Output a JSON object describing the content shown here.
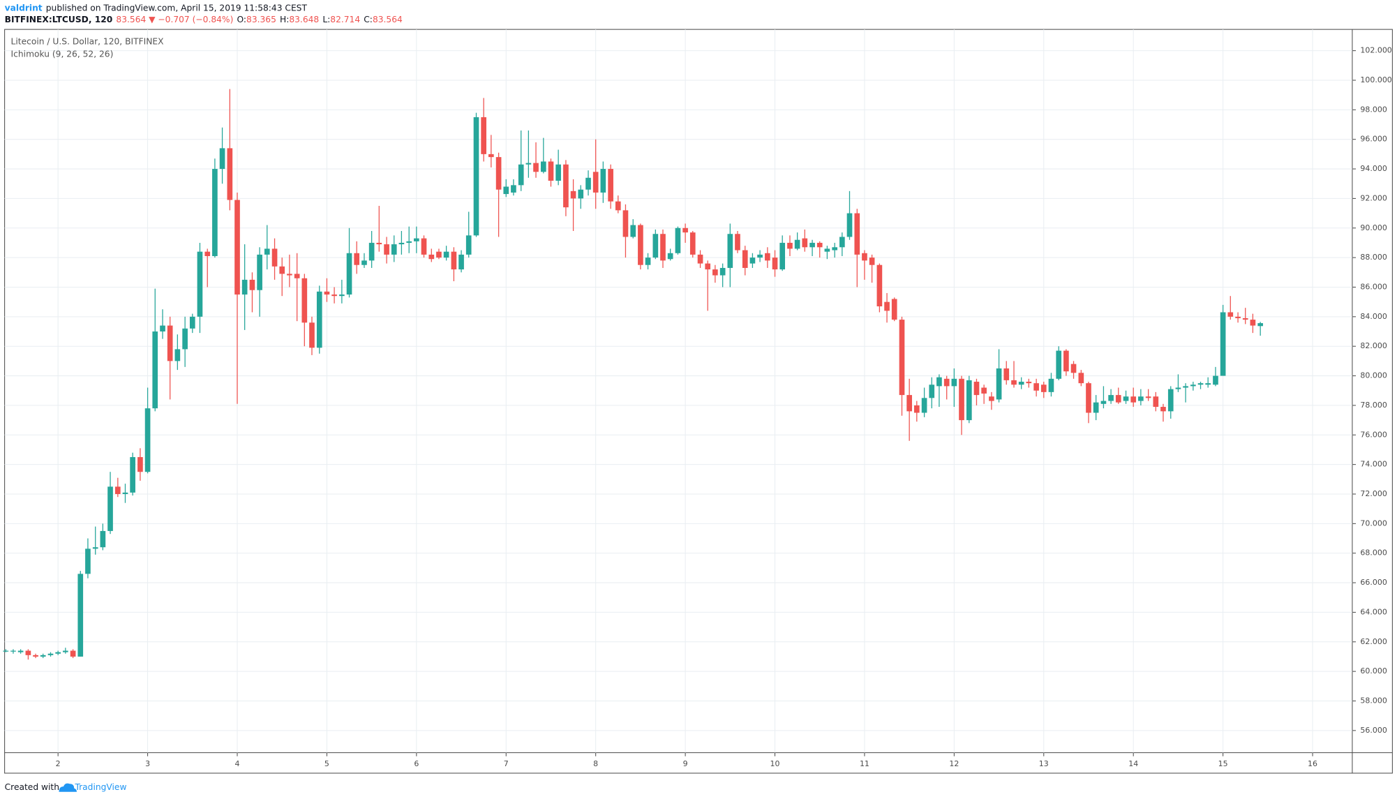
{
  "header": {
    "author": "valdrint",
    "published": "published on TradingView.com, April 15, 2019 11:58:43 CEST",
    "symbol": "BITFINEX:LTCUSD, 120",
    "last": "83.564",
    "arrow": "▼",
    "change": "−0.707 (−0.84%)",
    "ohlc": [
      {
        "label": "O:",
        "value": "83.365"
      },
      {
        "label": "H:",
        "value": "83.648"
      },
      {
        "label": "L:",
        "value": "82.714"
      },
      {
        "label": "C:",
        "value": "83.564"
      }
    ]
  },
  "footer": {
    "created": "Created with",
    "brand": "TradingView"
  },
  "chart_data": {
    "type": "candlestick",
    "title": "Litecoin / U.S. Dollar, 120, BITFINEX",
    "subtitle": "Ichimoku (9, 26, 52, 26)",
    "up_color": "#26a69a",
    "down_color": "#ef5350",
    "grid": true,
    "xlim": [
      1.404,
      16.443
    ],
    "xticks": [
      2,
      3,
      4,
      5,
      6,
      7,
      8,
      9,
      10,
      11,
      12,
      13,
      14,
      15,
      16
    ],
    "ylim": [
      54.5,
      103.44
    ],
    "yticks": [
      {
        "value": 56,
        "label": "56.000"
      },
      {
        "value": 58,
        "label": "58.000"
      },
      {
        "value": 60,
        "label": "60.000"
      },
      {
        "value": 62,
        "label": "62.000"
      },
      {
        "value": 64,
        "label": "64.000"
      },
      {
        "value": 66,
        "label": "66.000"
      },
      {
        "value": 68,
        "label": "68.000"
      },
      {
        "value": 70,
        "label": "70.000"
      },
      {
        "value": 72,
        "label": "72.000"
      },
      {
        "value": 74,
        "label": "74.000"
      },
      {
        "value": 76,
        "label": "76.000"
      },
      {
        "value": 78,
        "label": "78.000"
      },
      {
        "value": 80,
        "label": "80.000"
      },
      {
        "value": 82,
        "label": "82.000"
      },
      {
        "value": 84,
        "label": "84.000"
      },
      {
        "value": 86,
        "label": "86.000"
      },
      {
        "value": 88,
        "label": "88.000"
      },
      {
        "value": 90,
        "label": "90.000"
      },
      {
        "value": 92,
        "label": "92.000"
      },
      {
        "value": 94,
        "label": "94.000"
      },
      {
        "value": 96,
        "label": "96.000"
      },
      {
        "value": 98,
        "label": "98.000"
      },
      {
        "value": 100,
        "label": "100.000"
      },
      {
        "value": 102,
        "label": "102.000"
      }
    ],
    "x": [
      1.417,
      1.5,
      1.583,
      1.667,
      1.75,
      1.833,
      1.917,
      2,
      2.083,
      2.167,
      2.25,
      2.333,
      2.417,
      2.5,
      2.583,
      2.667,
      2.75,
      2.833,
      2.917,
      3,
      3.083,
      3.167,
      3.25,
      3.333,
      3.417,
      3.5,
      3.583,
      3.667,
      3.75,
      3.833,
      3.917,
      4,
      4.083,
      4.167,
      4.25,
      4.333,
      4.417,
      4.5,
      4.583,
      4.667,
      4.75,
      4.833,
      4.917,
      5,
      5.083,
      5.167,
      5.25,
      5.333,
      5.417,
      5.5,
      5.583,
      5.667,
      5.75,
      5.833,
      5.917,
      6,
      6.083,
      6.167,
      6.25,
      6.333,
      6.417,
      6.5,
      6.583,
      6.667,
      6.75,
      6.833,
      6.917,
      7,
      7.083,
      7.167,
      7.25,
      7.333,
      7.417,
      7.5,
      7.583,
      7.667,
      7.75,
      7.833,
      7.917,
      8,
      8.083,
      8.167,
      8.25,
      8.333,
      8.417,
      8.5,
      8.583,
      8.667,
      8.75,
      8.833,
      8.917,
      9,
      9.083,
      9.167,
      9.25,
      9.333,
      9.417,
      9.5,
      9.583,
      9.667,
      9.75,
      9.833,
      9.917,
      10,
      10.083,
      10.167,
      10.25,
      10.333,
      10.417,
      10.5,
      10.583,
      10.667,
      10.75,
      10.833,
      10.917,
      11,
      11.083,
      11.167,
      11.25,
      11.333,
      11.417,
      11.5,
      11.583,
      11.667,
      11.75,
      11.833,
      11.917,
      12,
      12.083,
      12.167,
      12.25,
      12.333,
      12.417,
      12.5,
      12.583,
      12.667,
      12.75,
      12.833,
      12.917,
      13,
      13.083,
      13.167,
      13.25,
      13.333,
      13.417,
      13.5,
      13.583,
      13.667,
      13.75,
      13.833,
      13.917,
      14,
      14.083,
      14.167,
      14.25,
      14.333,
      14.417,
      14.5,
      14.583,
      14.667,
      14.75,
      14.833,
      14.917,
      15,
      15.083,
      15.167,
      15.25,
      15.333,
      15.417
    ],
    "open": [
      61.4,
      61.4,
      61.3,
      61.4,
      61.1,
      61.0,
      61.1,
      61.2,
      61.3,
      61.4,
      61.0,
      66.6,
      68.3,
      68.4,
      69.5,
      72.5,
      72.0,
      72.1,
      74.5,
      73.5,
      77.8,
      83.0,
      83.4,
      81.0,
      81.8,
      83.2,
      84.0,
      88.4,
      88.1,
      94.0,
      95.4,
      91.9,
      85.5,
      86.5,
      85.8,
      88.2,
      88.6,
      87.4,
      86.9,
      86.9,
      86.6,
      83.6,
      81.9,
      85.7,
      85.5,
      85.4,
      85.5,
      88.3,
      87.5,
      87.8,
      89.0,
      88.9,
      88.2,
      88.9,
      89.0,
      89.1,
      89.3,
      88.2,
      88.4,
      88.0,
      88.4,
      87.2,
      88.2,
      89.5,
      97.5,
      95.0,
      94.8,
      92.3,
      92.4,
      92.9,
      94.3,
      94.4,
      93.8,
      94.5,
      93.2,
      94.3,
      92.5,
      92.0,
      92.6,
      93.8,
      92.4,
      94.0,
      91.8,
      91.2,
      89.4,
      90.2,
      87.5,
      88.0,
      89.6,
      87.9,
      88.3,
      90.0,
      89.7,
      88.2,
      87.6,
      87.2,
      86.8,
      87.3,
      89.6,
      88.5,
      87.6,
      88.0,
      88.3,
      88.0,
      87.2,
      89.0,
      88.6,
      89.3,
      88.7,
      89.0,
      88.4,
      88.5,
      88.7,
      89.4,
      91.0,
      88.3,
      88.0,
      87.5,
      85.0,
      85.2,
      83.8,
      78.7,
      78.0,
      77.5,
      78.5,
      79.3,
      79.8,
      79.3,
      79.8,
      77.0,
      79.6,
      79.2,
      78.6,
      78.4,
      80.5,
      79.7,
      79.4,
      79.6,
      79.5,
      79.4,
      78.9,
      79.8,
      81.7,
      80.8,
      80.2,
      79.5,
      77.5,
      78.1,
      78.3,
      78.7,
      78.3,
      78.6,
      78.3,
      78.6,
      78.6,
      77.9,
      77.6,
      79.1,
      79.2,
      79.3,
      79.4,
      79.4,
      79.4,
      80.0,
      84.3,
      84.0,
      83.9,
      83.8,
      83.365
    ],
    "high": [
      61.5,
      61.5,
      61.5,
      61.5,
      61.2,
      61.2,
      61.3,
      61.4,
      61.6,
      61.5,
      66.8,
      69.0,
      69.8,
      70.0,
      73.5,
      73.1,
      72.7,
      74.8,
      75.1,
      79.2,
      85.9,
      84.5,
      84.0,
      82.8,
      84.0,
      84.2,
      89.0,
      88.6,
      94.7,
      96.8,
      99.4,
      92.4,
      88.9,
      87.0,
      88.7,
      90.2,
      89.3,
      88.0,
      88.2,
      88.3,
      86.9,
      84.0,
      86.1,
      86.6,
      86.0,
      86.5,
      90.0,
      89.1,
      88.3,
      89.8,
      91.5,
      89.4,
      89.5,
      89.8,
      90.1,
      90.1,
      89.5,
      88.6,
      88.6,
      88.8,
      88.7,
      88.5,
      91.1,
      97.8,
      98.8,
      96.3,
      95.1,
      93.3,
      93.3,
      96.6,
      96.6,
      95.8,
      96.1,
      94.7,
      95.3,
      94.6,
      93.3,
      92.9,
      93.9,
      96.0,
      94.5,
      94.3,
      92.2,
      91.6,
      90.6,
      90.3,
      88.3,
      89.9,
      89.9,
      88.6,
      90.1,
      90.3,
      89.8,
      88.5,
      87.8,
      87.5,
      87.6,
      90.3,
      89.8,
      88.8,
      88.3,
      88.5,
      88.7,
      88.5,
      89.5,
      89.5,
      89.7,
      89.9,
      89.2,
      89.1,
      88.8,
      89.0,
      89.7,
      92.5,
      91.3,
      88.5,
      88.2,
      87.6,
      85.6,
      85.3,
      84.0,
      79.8,
      78.3,
      79.2,
      79.9,
      80.1,
      80.0,
      80.5,
      80.0,
      80.0,
      79.8,
      79.4,
      78.9,
      81.8,
      81.0,
      81.0,
      79.9,
      79.8,
      79.8,
      79.6,
      80.2,
      82.0,
      81.8,
      81.0,
      80.4,
      79.6,
      78.7,
      79.3,
      79.1,
      79.2,
      79.0,
      79.2,
      79.1,
      79.1,
      78.9,
      78.1,
      79.3,
      80.1,
      79.5,
      79.6,
      79.6,
      79.9,
      80.6,
      84.8,
      85.4,
      84.3,
      84.6,
      84.2,
      83.648
    ],
    "low": [
      61.3,
      61.2,
      61.2,
      60.8,
      60.9,
      60.9,
      61.0,
      61.1,
      61.2,
      60.9,
      61.0,
      66.3,
      67.9,
      68.2,
      69.3,
      71.8,
      71.4,
      71.9,
      72.9,
      73.4,
      77.6,
      82.5,
      78.4,
      80.4,
      80.6,
      82.9,
      82.9,
      86.0,
      88.0,
      93.0,
      91.2,
      78.1,
      83.1,
      84.3,
      84.0,
      87.2,
      86.5,
      85.4,
      86.0,
      83.7,
      82.0,
      81.4,
      81.5,
      85.0,
      84.9,
      84.9,
      85.3,
      86.9,
      87.3,
      87.3,
      88.4,
      87.6,
      87.7,
      88.2,
      88.3,
      88.3,
      88.0,
      87.7,
      87.9,
      87.8,
      86.4,
      87.0,
      88.0,
      89.4,
      94.5,
      94.1,
      89.4,
      92.1,
      92.2,
      92.5,
      93.4,
      93.4,
      93.7,
      92.8,
      92.9,
      90.8,
      89.8,
      91.3,
      92.2,
      91.3,
      91.7,
      91.3,
      91.0,
      88.0,
      89.3,
      87.2,
      87.2,
      87.9,
      87.3,
      87.8,
      88.2,
      89.0,
      88.0,
      87.3,
      84.4,
      86.3,
      86.0,
      86.0,
      88.3,
      86.8,
      87.3,
      87.7,
      87.3,
      86.7,
      87.1,
      88.1,
      88.5,
      88.4,
      88.1,
      88.0,
      87.9,
      88.0,
      88.1,
      89.2,
      86.0,
      86.5,
      86.3,
      84.3,
      83.6,
      83.7,
      77.3,
      75.6,
      76.9,
      77.2,
      77.8,
      77.9,
      78.4,
      77.9,
      76.0,
      76.8,
      78.0,
      78.1,
      77.7,
      78.2,
      79.4,
      79.2,
      79.1,
      79.2,
      78.6,
      78.5,
      78.6,
      79.7,
      80.0,
      79.8,
      79.3,
      76.8,
      77.0,
      77.8,
      78.1,
      78.1,
      78.1,
      77.9,
      78.0,
      78.3,
      77.6,
      76.9,
      77.1,
      78.9,
      78.2,
      79.0,
      79.1,
      79.2,
      79.3,
      80.0,
      83.8,
      83.6,
      83.5,
      82.9,
      82.714
    ],
    "close": [
      61.4,
      61.4,
      61.4,
      61.1,
      61.0,
      61.1,
      61.2,
      61.3,
      61.4,
      61.0,
      66.6,
      68.3,
      68.4,
      69.5,
      72.5,
      72.0,
      72.1,
      74.5,
      73.5,
      77.8,
      83.0,
      83.4,
      81.0,
      81.8,
      83.2,
      84.0,
      88.4,
      88.1,
      94.0,
      95.4,
      91.9,
      85.5,
      86.5,
      85.8,
      88.2,
      88.6,
      87.4,
      86.9,
      86.8,
      86.6,
      83.6,
      81.9,
      85.7,
      85.5,
      85.4,
      85.5,
      88.3,
      87.5,
      87.8,
      89.0,
      88.9,
      88.2,
      88.9,
      89.0,
      89.1,
      89.3,
      88.2,
      87.9,
      88.0,
      88.4,
      87.2,
      88.2,
      89.5,
      97.5,
      95.0,
      94.8,
      92.6,
      92.8,
      92.9,
      94.3,
      94.4,
      93.8,
      94.5,
      93.2,
      94.3,
      91.4,
      92.0,
      92.6,
      93.4,
      92.4,
      94.0,
      91.8,
      91.2,
      89.4,
      90.2,
      87.5,
      88.0,
      89.6,
      87.8,
      88.3,
      90.0,
      89.7,
      88.2,
      87.6,
      87.2,
      86.8,
      87.3,
      89.6,
      88.5,
      87.3,
      88.0,
      88.2,
      87.8,
      87.2,
      89.0,
      88.6,
      89.2,
      88.7,
      89.0,
      88.7,
      88.6,
      88.7,
      89.4,
      91.0,
      88.2,
      87.8,
      87.5,
      84.7,
      84.4,
      83.8,
      78.7,
      77.6,
      77.5,
      78.5,
      79.4,
      79.9,
      79.3,
      79.8,
      77.0,
      79.7,
      78.7,
      78.8,
      78.3,
      80.5,
      79.7,
      79.4,
      79.6,
      79.5,
      79.0,
      78.9,
      79.8,
      81.7,
      80.3,
      80.2,
      79.5,
      77.5,
      78.2,
      78.3,
      78.7,
      78.2,
      78.6,
      78.2,
      78.6,
      78.5,
      77.9,
      77.6,
      79.1,
      79.2,
      79.3,
      79.4,
      79.5,
      79.5,
      80.0,
      84.3,
      84.0,
      83.9,
      83.8,
      83.4,
      83.564
    ]
  }
}
